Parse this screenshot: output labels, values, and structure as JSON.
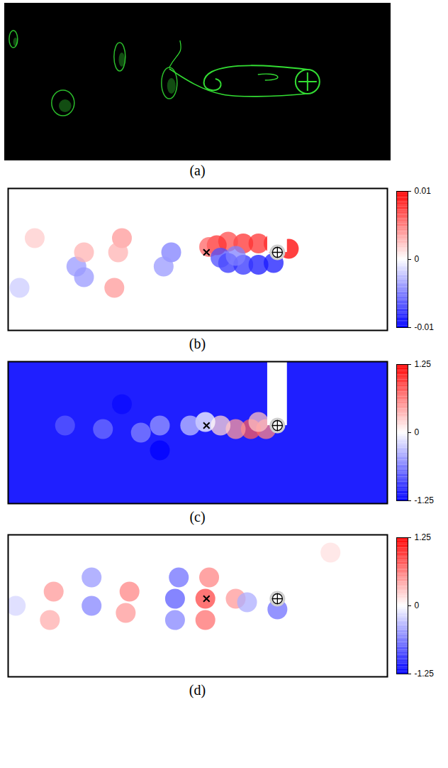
{
  "chart_data": [
    {
      "type": "image",
      "title": "(a)",
      "xlim": [
        0,
        100
      ],
      "ylim": [
        0,
        40
      ],
      "cylinder": {
        "x": 78.5,
        "y": 20
      }
    },
    {
      "type": "heatmap",
      "title": "(b)",
      "xlim": [
        0,
        100
      ],
      "ylim": [
        0,
        40
      ],
      "tick_labels": false,
      "background": 0,
      "cells": [
        {
          "x": 74,
          "y": 23,
          "value": 0.01
        },
        {
          "x": 70,
          "y": 24.5,
          "value": 0.009
        },
        {
          "x": 66,
          "y": 24.5,
          "value": 0.008
        },
        {
          "x": 62,
          "y": 24.5,
          "value": 0.008
        },
        {
          "x": 58,
          "y": 25,
          "value": 0.007
        },
        {
          "x": 55,
          "y": 24,
          "value": 0.008
        },
        {
          "x": 53,
          "y": 23.5,
          "value": 0.006
        },
        {
          "x": 70,
          "y": 19,
          "value": -0.009
        },
        {
          "x": 66,
          "y": 18.5,
          "value": -0.009
        },
        {
          "x": 62,
          "y": 18.5,
          "value": -0.008
        },
        {
          "x": 58,
          "y": 19,
          "value": -0.008
        },
        {
          "x": 56,
          "y": 20.5,
          "value": -0.007
        },
        {
          "x": 60,
          "y": 21,
          "value": -0.005
        },
        {
          "x": 43,
          "y": 22,
          "value": -0.005
        },
        {
          "x": 41,
          "y": 18,
          "value": -0.004
        },
        {
          "x": 30,
          "y": 26,
          "value": 0.004
        },
        {
          "x": 29,
          "y": 22,
          "value": 0.003
        },
        {
          "x": 20,
          "y": 15,
          "value": -0.004
        },
        {
          "x": 18,
          "y": 18,
          "value": -0.004
        },
        {
          "x": 20,
          "y": 22,
          "value": 0.003
        },
        {
          "x": 7,
          "y": 26,
          "value": 0.002
        },
        {
          "x": 28,
          "y": 12,
          "value": 0.004
        },
        {
          "x": 3,
          "y": 12,
          "value": -0.002
        }
      ],
      "colorbar": {
        "range": [
          -0.01,
          0.01
        ],
        "ticks": [
          -0.01,
          0,
          0.01
        ]
      },
      "cylinder": {
        "x": 71,
        "y": 22
      },
      "probe": {
        "x": 52.3,
        "y": 22
      }
    },
    {
      "type": "heatmap",
      "title": "(c)",
      "xlim": [
        0,
        100
      ],
      "ylim": [
        0,
        40
      ],
      "tick_labels": false,
      "background": -1.1,
      "cells": [
        {
          "x": 68,
          "y": 21,
          "value": 0.6
        },
        {
          "x": 64,
          "y": 21,
          "value": 0.8
        },
        {
          "x": 60,
          "y": 21,
          "value": 0.5
        },
        {
          "x": 56,
          "y": 22,
          "value": 0.2
        },
        {
          "x": 66,
          "y": 23,
          "value": 0.3
        },
        {
          "x": 52,
          "y": 23,
          "value": 0
        },
        {
          "x": 48,
          "y": 22,
          "value": -0.3
        },
        {
          "x": 40,
          "y": 22,
          "value": -0.5
        },
        {
          "x": 35,
          "y": 20,
          "value": -0.6
        },
        {
          "x": 25,
          "y": 21,
          "value": -0.7
        },
        {
          "x": 15,
          "y": 22,
          "value": -0.8
        },
        {
          "x": 40,
          "y": 15,
          "value": -1.25
        },
        {
          "x": 30,
          "y": 28,
          "value": -1.2
        }
      ],
      "colorbar": {
        "range": [
          -1.25,
          1.25
        ],
        "ticks": [
          -1.25,
          0,
          1.25
        ]
      },
      "cylinder": {
        "x": 71,
        "y": 22
      },
      "probe": {
        "x": 52.3,
        "y": 22
      }
    },
    {
      "type": "heatmap",
      "title": "(d)",
      "xlim": [
        0,
        100
      ],
      "ylim": [
        0,
        40
      ],
      "tick_labels": false,
      "background": 0,
      "cells": [
        {
          "x": 52,
          "y": 22,
          "value": 0.9
        },
        {
          "x": 52,
          "y": 16,
          "value": 0.7
        },
        {
          "x": 53,
          "y": 28,
          "value": 0.6
        },
        {
          "x": 44,
          "y": 22,
          "value": -0.8
        },
        {
          "x": 44,
          "y": 16,
          "value": -0.6
        },
        {
          "x": 45,
          "y": 28,
          "value": -0.7
        },
        {
          "x": 32,
          "y": 24,
          "value": 0.6
        },
        {
          "x": 31,
          "y": 18,
          "value": 0.5
        },
        {
          "x": 22,
          "y": 20,
          "value": -0.6
        },
        {
          "x": 22,
          "y": 28,
          "value": -0.5
        },
        {
          "x": 12,
          "y": 24,
          "value": 0.5
        },
        {
          "x": 11,
          "y": 16,
          "value": 0.4
        },
        {
          "x": 2,
          "y": 20,
          "value": -0.2
        },
        {
          "x": 60,
          "y": 22,
          "value": 0.5
        },
        {
          "x": 63,
          "y": 21,
          "value": -0.4
        },
        {
          "x": 71,
          "y": 19,
          "value": -0.7
        },
        {
          "x": 85,
          "y": 35,
          "value": 0.15
        }
      ],
      "colorbar": {
        "range": [
          -1.25,
          1.25
        ],
        "ticks": [
          -1.25,
          0,
          1.25
        ]
      },
      "cylinder": {
        "x": 71,
        "y": 22
      },
      "probe": {
        "x": 52.3,
        "y": 22
      }
    }
  ]
}
